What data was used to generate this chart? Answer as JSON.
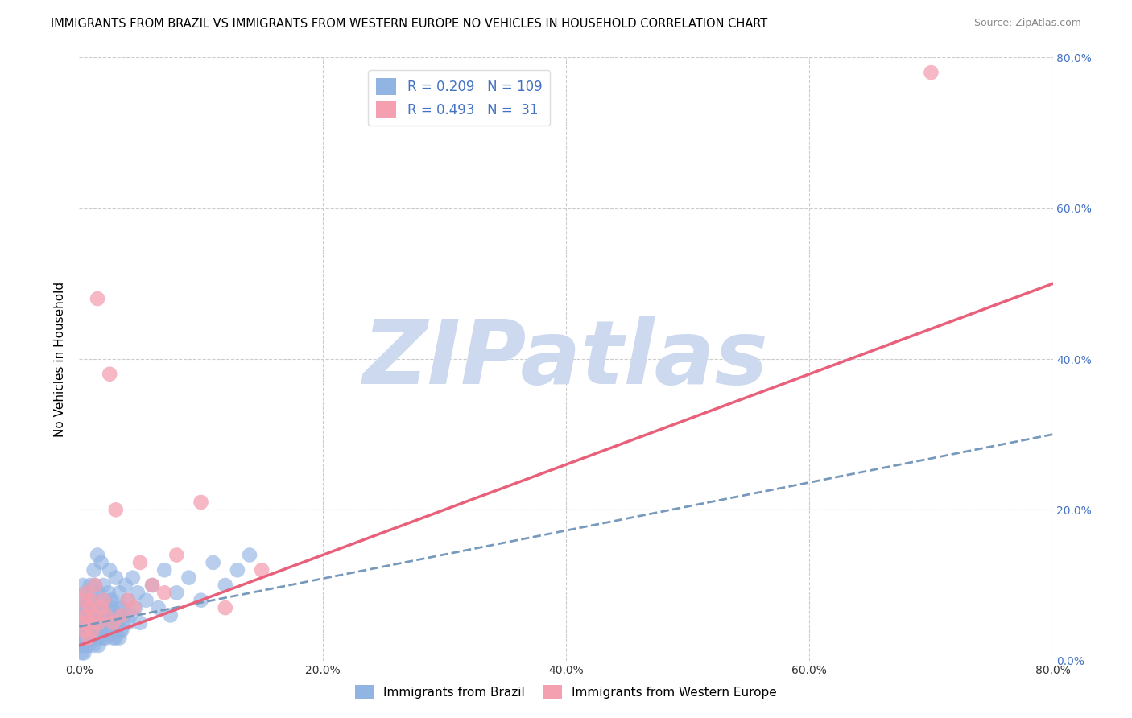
{
  "title": "IMMIGRANTS FROM BRAZIL VS IMMIGRANTS FROM WESTERN EUROPE NO VEHICLES IN HOUSEHOLD CORRELATION CHART",
  "source": "Source: ZipAtlas.com",
  "ylabel": "No Vehicles in Household",
  "legend_bottom": [
    "Immigrants from Brazil",
    "Immigrants from Western Europe"
  ],
  "brazil_R": 0.209,
  "brazil_N": 109,
  "western_R": 0.493,
  "western_N": 31,
  "brazil_color": "#92b4e3",
  "western_color": "#f4a0b0",
  "brazil_line_color": "#7799bb",
  "western_line_color": "#e8607a",
  "watermark": "ZIPatlas",
  "watermark_color": "#ccd9ee",
  "xlim": [
    0,
    0.8
  ],
  "ylim": [
    0,
    0.8
  ],
  "xticks": [
    0.0,
    0.2,
    0.4,
    0.6,
    0.8
  ],
  "yticks": [
    0.0,
    0.2,
    0.4,
    0.6,
    0.8
  ],
  "brazil_trend_x": [
    0.0,
    0.8
  ],
  "brazil_trend_y": [
    0.045,
    0.3
  ],
  "western_trend_x": [
    0.0,
    0.8
  ],
  "western_trend_y": [
    0.02,
    0.5
  ],
  "brazil_scatter_x": [
    0.001,
    0.001,
    0.002,
    0.002,
    0.003,
    0.003,
    0.003,
    0.004,
    0.004,
    0.005,
    0.005,
    0.005,
    0.006,
    0.006,
    0.007,
    0.007,
    0.008,
    0.008,
    0.009,
    0.009,
    0.01,
    0.01,
    0.011,
    0.011,
    0.012,
    0.012,
    0.013,
    0.013,
    0.014,
    0.015,
    0.015,
    0.016,
    0.016,
    0.017,
    0.018,
    0.018,
    0.019,
    0.02,
    0.02,
    0.021,
    0.022,
    0.023,
    0.024,
    0.025,
    0.025,
    0.026,
    0.027,
    0.028,
    0.03,
    0.03,
    0.032,
    0.033,
    0.034,
    0.035,
    0.036,
    0.038,
    0.04,
    0.042,
    0.044,
    0.046,
    0.048,
    0.05,
    0.055,
    0.06,
    0.065,
    0.07,
    0.075,
    0.08,
    0.09,
    0.1,
    0.11,
    0.12,
    0.13,
    0.14,
    0.002,
    0.003,
    0.004,
    0.005,
    0.006,
    0.007,
    0.008,
    0.009,
    0.01,
    0.011,
    0.012,
    0.013,
    0.014,
    0.015,
    0.016,
    0.017,
    0.018,
    0.019,
    0.02,
    0.021,
    0.022,
    0.023,
    0.024,
    0.025,
    0.026,
    0.027,
    0.028,
    0.029,
    0.03,
    0.032,
    0.033,
    0.034,
    0.035,
    0.037,
    0.04
  ],
  "brazil_scatter_y": [
    0.02,
    0.04,
    0.03,
    0.06,
    0.05,
    0.08,
    0.1,
    0.03,
    0.07,
    0.04,
    0.06,
    0.09,
    0.05,
    0.07,
    0.03,
    0.08,
    0.04,
    0.06,
    0.05,
    0.1,
    0.03,
    0.07,
    0.04,
    0.09,
    0.05,
    0.12,
    0.06,
    0.1,
    0.03,
    0.07,
    0.14,
    0.05,
    0.09,
    0.04,
    0.08,
    0.13,
    0.06,
    0.03,
    0.1,
    0.05,
    0.07,
    0.04,
    0.09,
    0.06,
    0.12,
    0.04,
    0.08,
    0.05,
    0.03,
    0.11,
    0.06,
    0.09,
    0.04,
    0.07,
    0.05,
    0.1,
    0.08,
    0.06,
    0.11,
    0.07,
    0.09,
    0.05,
    0.08,
    0.1,
    0.07,
    0.12,
    0.06,
    0.09,
    0.11,
    0.08,
    0.13,
    0.1,
    0.12,
    0.14,
    0.01,
    0.02,
    0.01,
    0.03,
    0.02,
    0.04,
    0.02,
    0.05,
    0.03,
    0.04,
    0.02,
    0.06,
    0.03,
    0.05,
    0.02,
    0.04,
    0.03,
    0.07,
    0.04,
    0.06,
    0.03,
    0.05,
    0.04,
    0.08,
    0.05,
    0.07,
    0.03,
    0.06,
    0.04,
    0.05,
    0.03,
    0.07,
    0.04,
    0.06,
    0.05
  ],
  "western_scatter_x": [
    0.002,
    0.003,
    0.004,
    0.005,
    0.006,
    0.007,
    0.008,
    0.009,
    0.01,
    0.011,
    0.012,
    0.013,
    0.015,
    0.016,
    0.018,
    0.02,
    0.022,
    0.025,
    0.028,
    0.03,
    0.035,
    0.04,
    0.045,
    0.05,
    0.06,
    0.07,
    0.08,
    0.1,
    0.12,
    0.15,
    0.7
  ],
  "western_scatter_y": [
    0.05,
    0.08,
    0.04,
    0.06,
    0.09,
    0.03,
    0.07,
    0.05,
    0.08,
    0.04,
    0.06,
    0.1,
    0.48,
    0.05,
    0.07,
    0.08,
    0.06,
    0.38,
    0.05,
    0.2,
    0.06,
    0.08,
    0.07,
    0.13,
    0.1,
    0.09,
    0.14,
    0.21,
    0.07,
    0.12,
    0.78
  ]
}
